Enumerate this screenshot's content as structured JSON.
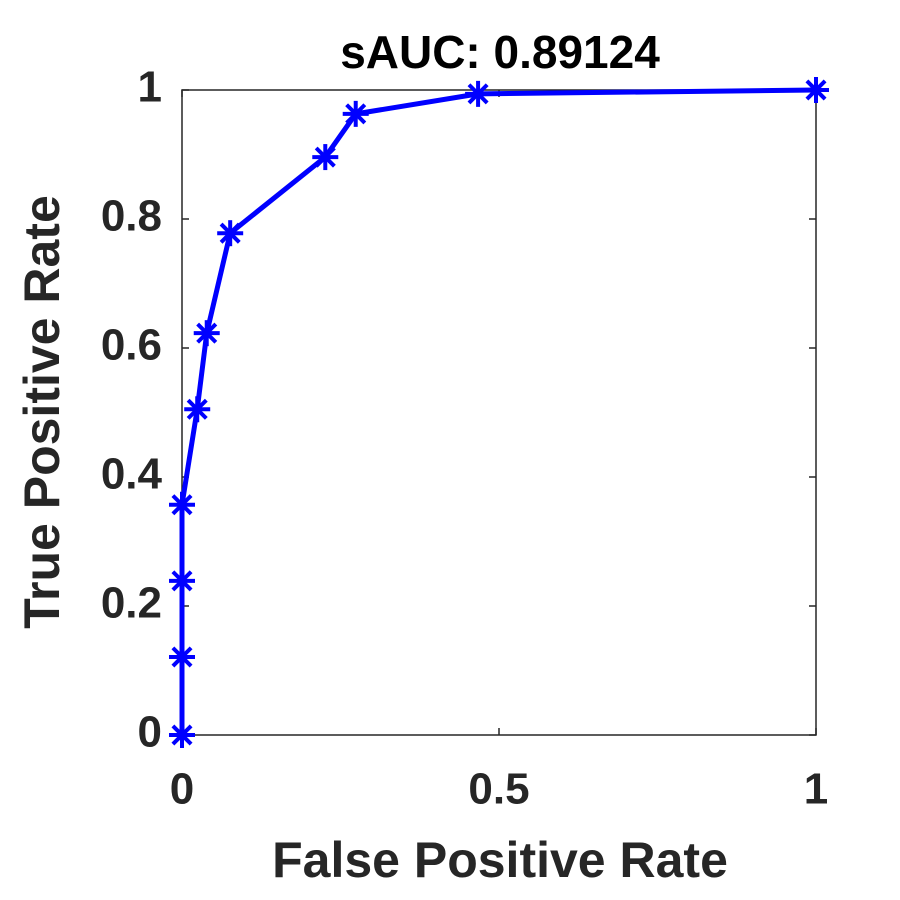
{
  "chart_data": {
    "type": "line",
    "title": "sAUC: 0.89124",
    "x_label": "False Positive Rate",
    "y_label": "True Positive Rate",
    "x": [
      0,
      0,
      0,
      0,
      0.024,
      0.039,
      0.076,
      0.226,
      0.274,
      0.467,
      1
    ],
    "series": [
      {
        "color": "#0000ff",
        "marker": "asterisk",
        "values": [
          0,
          0.121,
          0.239,
          0.357,
          0.505,
          0.623,
          0.778,
          0.896,
          0.963,
          0.994,
          1
        ]
      }
    ],
    "xlim": [
      0,
      1
    ],
    "ylim": [
      0,
      1
    ],
    "xticks": [
      0,
      0.5,
      1
    ],
    "yticks": [
      0,
      0.2,
      0.4,
      0.6,
      0.8,
      1
    ],
    "grid": false
  }
}
